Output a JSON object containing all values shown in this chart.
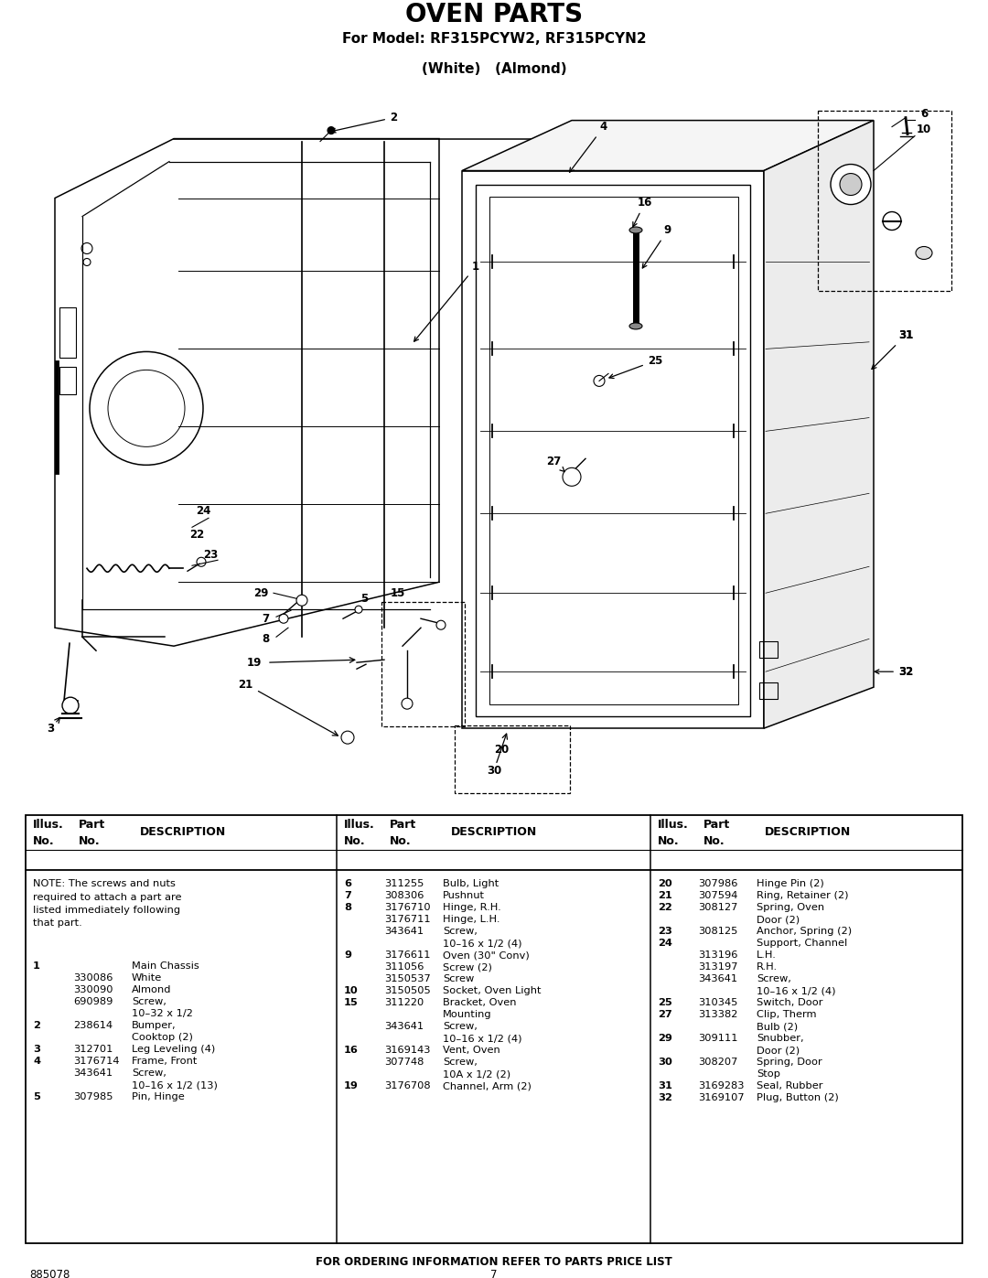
{
  "title": "OVEN PARTS",
  "subtitle1": "For Model: RF315PCYW2, RF315PCYN2",
  "subtitle2": "(White)   (Almond)",
  "background_color": "#ffffff",
  "page_number": "7",
  "doc_number": "885078",
  "footer_text": "FOR ORDERING INFORMATION REFER TO PARTS PRICE LIST",
  "note": "NOTE: The screws and nuts\nrequired to attach a part are\nlisted immediately following\nthat part.",
  "parts_col1": [
    [
      "1",
      "",
      "Main Chassis"
    ],
    [
      "",
      "330086",
      "White"
    ],
    [
      "",
      "330090",
      "Almond"
    ],
    [
      "",
      "690989",
      "Screw,"
    ],
    [
      "",
      "",
      "10–32 x 1/2"
    ],
    [
      "2",
      "238614",
      "Bumper,"
    ],
    [
      "",
      "",
      "Cooktop (2)"
    ],
    [
      "3",
      "312701",
      "Leg Leveling (4)"
    ],
    [
      "4",
      "3176714",
      "Frame, Front"
    ],
    [
      "",
      "343641",
      "Screw,"
    ],
    [
      "",
      "",
      "10–16 x 1/2 (13)"
    ],
    [
      "5",
      "307985",
      "Pin, Hinge"
    ]
  ],
  "parts_col2": [
    [
      "6",
      "311255",
      "Bulb, Light"
    ],
    [
      "7",
      "308306",
      "Pushnut"
    ],
    [
      "8",
      "3176710",
      "Hinge, R.H."
    ],
    [
      "",
      "3176711",
      "Hinge, L.H."
    ],
    [
      "",
      "343641",
      "Screw,"
    ],
    [
      "",
      "",
      "10–16 x 1/2 (4)"
    ],
    [
      "9",
      "3176611",
      "Oven (30\" Conv)"
    ],
    [
      "",
      "311056",
      "Screw (2)"
    ],
    [
      "",
      "3150537",
      "Screw"
    ],
    [
      "10",
      "3150505",
      "Socket, Oven Light"
    ],
    [
      "15",
      "311220",
      "Bracket, Oven"
    ],
    [
      "",
      "",
      "Mounting"
    ],
    [
      "",
      "343641",
      "Screw,"
    ],
    [
      "",
      "",
      "10–16 x 1/2 (4)"
    ],
    [
      "16",
      "3169143",
      "Vent, Oven"
    ],
    [
      "",
      "307748",
      "Screw,"
    ],
    [
      "",
      "",
      "10A x 1/2 (2)"
    ],
    [
      "19",
      "3176708",
      "Channel, Arm (2)"
    ]
  ],
  "parts_col3": [
    [
      "20",
      "307986",
      "Hinge Pin (2)"
    ],
    [
      "21",
      "307594",
      "Ring, Retainer (2)"
    ],
    [
      "22",
      "308127",
      "Spring, Oven"
    ],
    [
      "",
      "",
      "Door (2)"
    ],
    [
      "23",
      "308125",
      "Anchor, Spring (2)"
    ],
    [
      "24",
      "",
      "Support, Channel"
    ],
    [
      "",
      "313196",
      "L.H."
    ],
    [
      "",
      "313197",
      "R.H."
    ],
    [
      "",
      "343641",
      "Screw,"
    ],
    [
      "",
      "",
      "10–16 x 1/2 (4)"
    ],
    [
      "25",
      "310345",
      "Switch, Door"
    ],
    [
      "27",
      "313382",
      "Clip, Therm"
    ],
    [
      "",
      "",
      "Bulb (2)"
    ],
    [
      "29",
      "309111",
      "Snubber,"
    ],
    [
      "",
      "",
      "Door (2)"
    ],
    [
      "30",
      "308207",
      "Spring, Door"
    ],
    [
      "",
      "",
      "Stop"
    ],
    [
      "31",
      "3169283",
      "Seal, Rubber"
    ],
    [
      "32",
      "3169107",
      "Plug, Button (2)"
    ]
  ]
}
